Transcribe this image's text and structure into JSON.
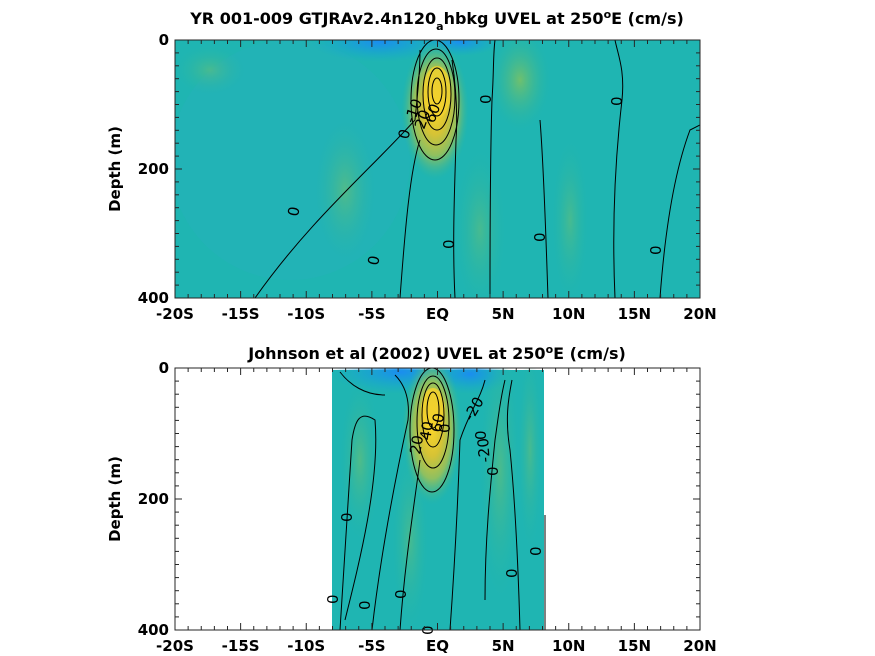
{
  "chart_data": [
    {
      "type": "heatmap",
      "subtype": "filled-contour",
      "title_main": "YR 001-009 GTJRAv2.4n120",
      "title_sub": "a",
      "title_rest": "hbkg UVEL at 250",
      "title_sup": "o",
      "title_end": "E (cm/s)",
      "ylabel": "Depth (m)",
      "xlim": [
        -20,
        20
      ],
      "ylim": [
        0,
        400
      ],
      "y_reversed": true,
      "x_ticks": [
        "-20S",
        "-15S",
        "-10S",
        "-5S",
        "EQ",
        "5N",
        "10N",
        "15N",
        "20N"
      ],
      "x_tick_values": [
        -20,
        -15,
        -10,
        -5,
        0,
        5,
        10,
        15,
        20
      ],
      "y_ticks": [
        "0",
        "200",
        "400"
      ],
      "y_tick_values": [
        0,
        200,
        400
      ],
      "data_extent_x": [
        -20,
        20
      ],
      "jet_core": {
        "lat": 0,
        "depth": 80
      },
      "contour_labels": [
        "-10",
        "20",
        "60",
        "0",
        "0",
        "0",
        "0",
        "0",
        "0",
        "0"
      ]
    },
    {
      "type": "heatmap",
      "subtype": "filled-contour",
      "title_main": "Johnson et al (2002) UVEL at 250",
      "title_sup": "o",
      "title_end": "E (cm/s)",
      "ylabel": "Depth (m)",
      "xlim": [
        -20,
        20
      ],
      "ylim": [
        0,
        400
      ],
      "y_reversed": true,
      "x_ticks": [
        "-20S",
        "-15S",
        "-10S",
        "-5S",
        "EQ",
        "5N",
        "10N",
        "15N",
        "20N"
      ],
      "x_tick_values": [
        -20,
        -15,
        -10,
        -5,
        0,
        5,
        10,
        15,
        20
      ],
      "y_ticks": [
        "0",
        "200",
        "400"
      ],
      "y_tick_values": [
        0,
        200,
        400
      ],
      "data_extent_x": [
        -8,
        8.3
      ],
      "jet_core": {
        "lat": 0,
        "depth": 70
      },
      "contour_labels": [
        "-20",
        "-20",
        "20",
        "40",
        "60",
        "0",
        "0",
        "0",
        "0",
        "0",
        "0",
        "0",
        "0",
        "0",
        "0"
      ]
    }
  ]
}
